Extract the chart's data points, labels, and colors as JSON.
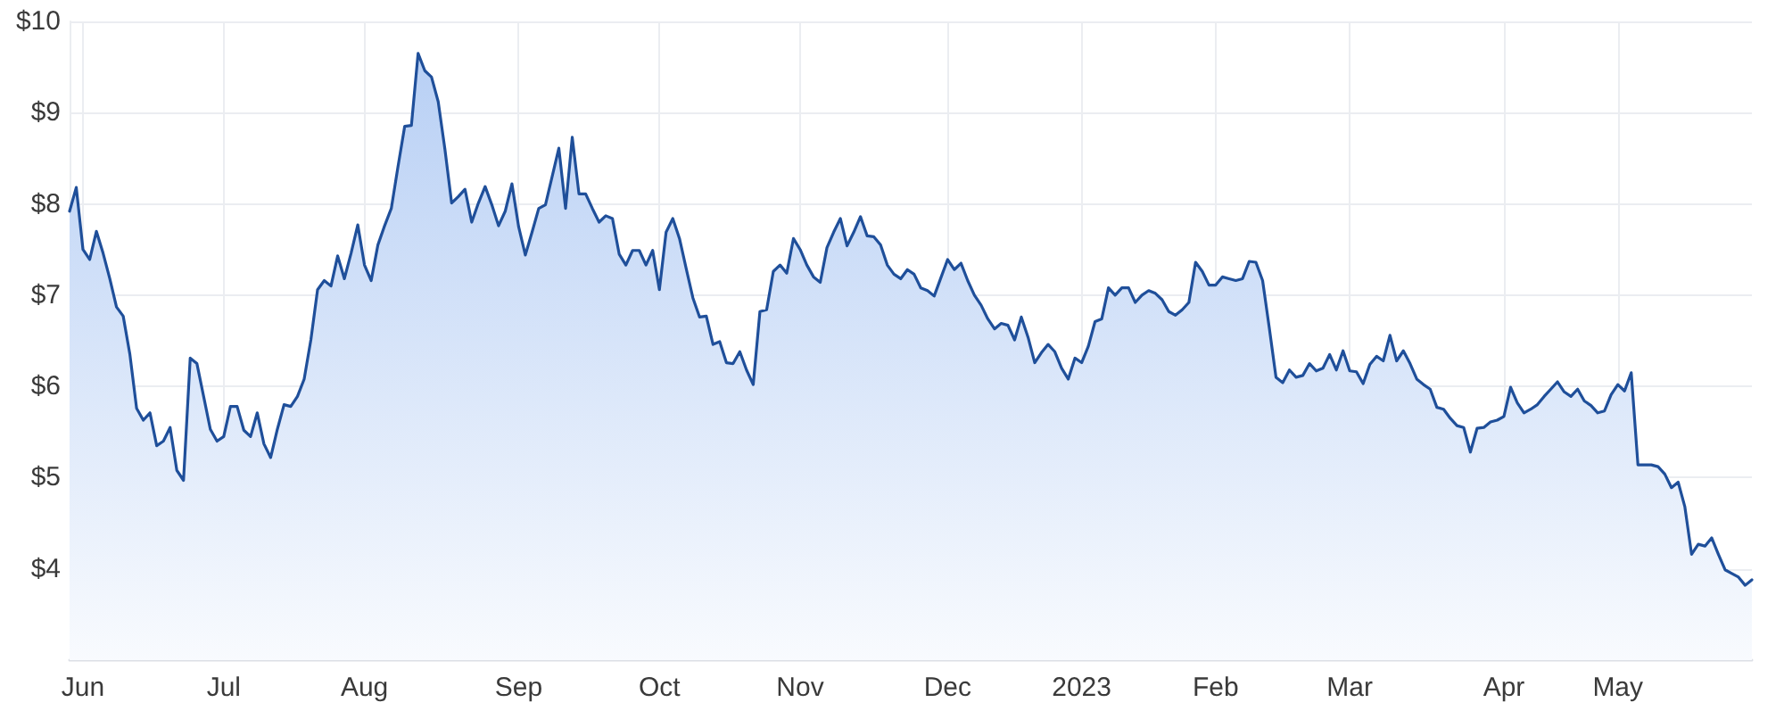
{
  "chart_data": {
    "type": "area",
    "color": "#1f4f9a",
    "categories": [
      null,
      null,
      "Jun",
      null,
      null,
      null,
      null,
      null,
      null,
      null,
      null,
      null,
      null,
      null,
      null,
      null,
      null,
      null,
      null,
      null,
      null,
      null,
      null,
      "Jul",
      null,
      null,
      null,
      null,
      null,
      null,
      null,
      null,
      null,
      null,
      null,
      null,
      null,
      null,
      null,
      null,
      null,
      null,
      null,
      null,
      "Aug",
      null,
      null,
      null,
      null,
      null,
      null,
      null,
      null,
      null,
      null,
      null,
      null,
      null,
      null,
      null,
      null,
      null,
      null,
      null,
      null,
      null,
      null,
      "Sep",
      null,
      null,
      null,
      null,
      null,
      null,
      null,
      null,
      null,
      null,
      null,
      null,
      null,
      null,
      null,
      null,
      null,
      null,
      null,
      null,
      "Oct",
      null,
      null,
      null,
      null,
      null,
      null,
      null,
      null,
      null,
      null,
      null,
      null,
      null,
      null,
      null,
      null,
      null,
      null,
      null,
      null,
      "Nov",
      null,
      null,
      null,
      null,
      null,
      null,
      null,
      null,
      null,
      null,
      null,
      null,
      null,
      null,
      null,
      null,
      null,
      null,
      null,
      null,
      null,
      "Dec",
      null,
      null,
      null,
      null,
      null,
      null,
      null,
      null,
      null,
      null,
      null,
      null,
      null,
      null,
      null,
      null,
      null,
      null,
      null,
      "2023",
      null,
      null,
      null,
      null,
      null,
      null,
      null,
      null,
      null,
      null,
      null,
      null,
      null,
      null,
      null,
      null,
      null,
      null,
      null,
      "Feb",
      null,
      null,
      null,
      null,
      null,
      null,
      null,
      null,
      null,
      null,
      null,
      null,
      null,
      null,
      null,
      null,
      null,
      null,
      null,
      "Mar",
      null,
      null,
      null,
      null,
      null,
      null,
      null,
      null,
      null,
      null,
      null,
      null,
      null,
      null,
      null,
      null,
      null,
      null,
      null,
      null,
      null,
      null,
      "Apr",
      null,
      null,
      null,
      null,
      null,
      null,
      null,
      null,
      null,
      null,
      null,
      null,
      null,
      null,
      null,
      null,
      "May",
      null,
      null,
      null,
      null,
      null,
      null,
      null,
      null,
      null,
      null,
      null,
      null,
      null,
      null,
      null,
      null,
      null,
      null,
      null,
      null
    ],
    "values": [
      7.92,
      8.18,
      7.5,
      7.39,
      7.7,
      7.46,
      7.18,
      6.87,
      6.77,
      6.35,
      5.76,
      5.63,
      5.71,
      5.35,
      5.4,
      5.55,
      5.08,
      4.97,
      6.31,
      6.25,
      5.89,
      5.53,
      5.4,
      5.45,
      5.78,
      5.78,
      5.52,
      5.45,
      5.71,
      5.37,
      5.22,
      5.53,
      5.8,
      5.78,
      5.89,
      6.08,
      6.51,
      7.06,
      7.16,
      7.1,
      7.43,
      7.18,
      7.46,
      7.77,
      7.33,
      7.16,
      7.55,
      7.76,
      7.95,
      8.41,
      8.85,
      8.86,
      9.65,
      9.46,
      9.39,
      9.12,
      8.6,
      8.01,
      8.08,
      8.16,
      7.8,
      8.01,
      8.19,
      7.99,
      7.76,
      7.92,
      8.22,
      7.75,
      7.44,
      7.69,
      7.95,
      7.99,
      8.3,
      8.61,
      7.95,
      8.73,
      8.11,
      8.11,
      7.95,
      7.8,
      7.87,
      7.84,
      7.45,
      7.33,
      7.49,
      7.49,
      7.33,
      7.49,
      7.06,
      7.69,
      7.84,
      7.62,
      7.29,
      6.97,
      6.76,
      6.77,
      6.46,
      6.49,
      6.26,
      6.25,
      6.38,
      6.18,
      6.02,
      6.82,
      6.84,
      7.26,
      7.33,
      7.24,
      7.62,
      7.5,
      7.33,
      7.2,
      7.14,
      7.52,
      7.69,
      7.84,
      7.54,
      7.69,
      7.86,
      7.65,
      7.64,
      7.55,
      7.33,
      7.23,
      7.18,
      7.28,
      7.23,
      7.08,
      7.05,
      6.99,
      7.19,
      7.39,
      7.28,
      7.35,
      7.16,
      7.0,
      6.89,
      6.74,
      6.63,
      6.69,
      6.67,
      6.51,
      6.76,
      6.54,
      6.26,
      6.37,
      6.46,
      6.38,
      6.2,
      6.08,
      6.31,
      6.26,
      6.44,
      6.71,
      6.74,
      7.08,
      7.0,
      7.08,
      7.08,
      6.92,
      7.0,
      7.05,
      7.02,
      6.95,
      6.82,
      6.78,
      6.84,
      6.92,
      7.36,
      7.26,
      7.11,
      7.11,
      7.2,
      7.18,
      7.16,
      7.18,
      7.37,
      7.36,
      7.16,
      6.64,
      6.1,
      6.04,
      6.18,
      6.1,
      6.12,
      6.25,
      6.17,
      6.2,
      6.35,
      6.18,
      6.39,
      6.17,
      6.16,
      6.03,
      6.24,
      6.33,
      6.28,
      6.56,
      6.28,
      6.39,
      6.25,
      6.08,
      6.02,
      5.97,
      5.77,
      5.75,
      5.65,
      5.57,
      5.55,
      5.28,
      5.54,
      5.55,
      5.61,
      5.63,
      5.67,
      5.99,
      5.82,
      5.71,
      5.75,
      5.8,
      5.89,
      5.97,
      6.05,
      5.94,
      5.89,
      5.97,
      5.84,
      5.79,
      5.71,
      5.73,
      5.91,
      6.02,
      5.95,
      6.15,
      5.14,
      5.14,
      5.14,
      5.12,
      5.04,
      4.89,
      4.95,
      4.68,
      4.16,
      4.27,
      4.25,
      4.34,
      4.16,
      3.99,
      3.95,
      3.91,
      3.82,
      3.88
    ],
    "ylim": [
      3,
      10
    ],
    "yticks": [
      {
        "value": 4,
        "label": "$4"
      },
      {
        "value": 5,
        "label": "$5"
      },
      {
        "value": 6,
        "label": "$6"
      },
      {
        "value": 7,
        "label": "$7"
      },
      {
        "value": 8,
        "label": "$8"
      },
      {
        "value": 9,
        "label": "$9"
      },
      {
        "value": 10,
        "label": "$10"
      }
    ],
    "grid": true,
    "marker": "none",
    "line_style": "solid"
  }
}
